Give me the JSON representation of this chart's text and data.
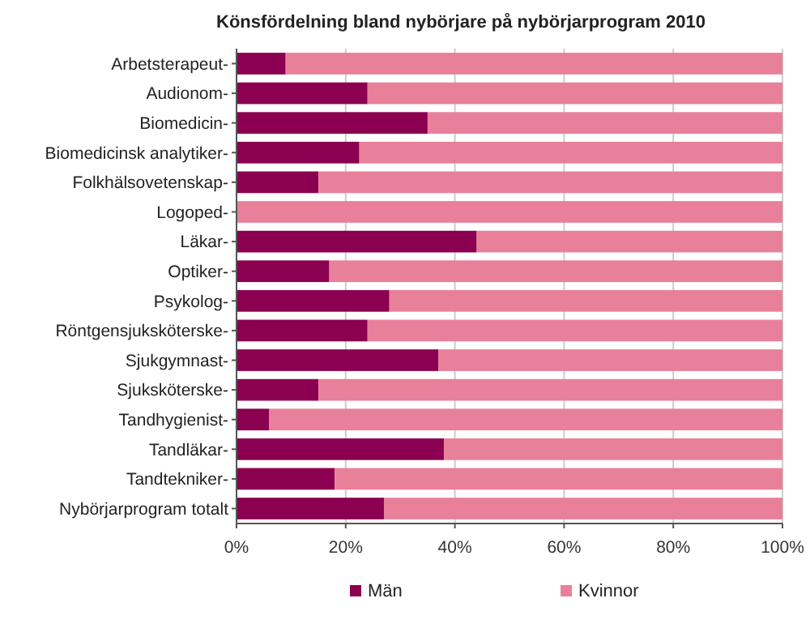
{
  "chart_data": {
    "type": "bar",
    "orientation": "horizontal",
    "stacked": true,
    "title": "Könsfördelning bland nybörjare på nybörjarprogram 2010",
    "categories": [
      "Arbetsterapeut-",
      "Audionom-",
      "Biomedicin-",
      "Biomedicinsk analytiker-",
      "Folkhälsovetenskap-",
      "Logoped-",
      "Läkar-",
      "Optiker-",
      "Psykolog-",
      "Röntgensjuksköterske-",
      "Sjukgymnast-",
      "Sjuksköterske-",
      "Tandhygienist-",
      "Tandläkar-",
      "Tandtekniker-",
      "Nybörjarprogram totalt"
    ],
    "series": [
      {
        "name": "Män",
        "color": "#8b0050",
        "values": [
          9,
          24,
          35,
          22.5,
          15,
          0,
          44,
          17,
          28,
          24,
          37,
          15,
          6,
          38,
          18,
          27
        ]
      },
      {
        "name": "Kvinnor",
        "color": "#e8809a",
        "values": [
          91,
          76,
          65,
          77.5,
          85,
          100,
          56,
          83,
          72,
          76,
          63,
          85,
          94,
          62,
          82,
          73
        ]
      }
    ],
    "xlim": [
      0,
      100
    ],
    "xticks": [
      {
        "value": 0,
        "label": "0%"
      },
      {
        "value": 20,
        "label": "20%"
      },
      {
        "value": 40,
        "label": "40%"
      },
      {
        "value": 60,
        "label": "60%"
      },
      {
        "value": 80,
        "label": "80%"
      },
      {
        "value": 100,
        "label": "100%"
      }
    ],
    "grid": "x",
    "legend": "bottom"
  }
}
